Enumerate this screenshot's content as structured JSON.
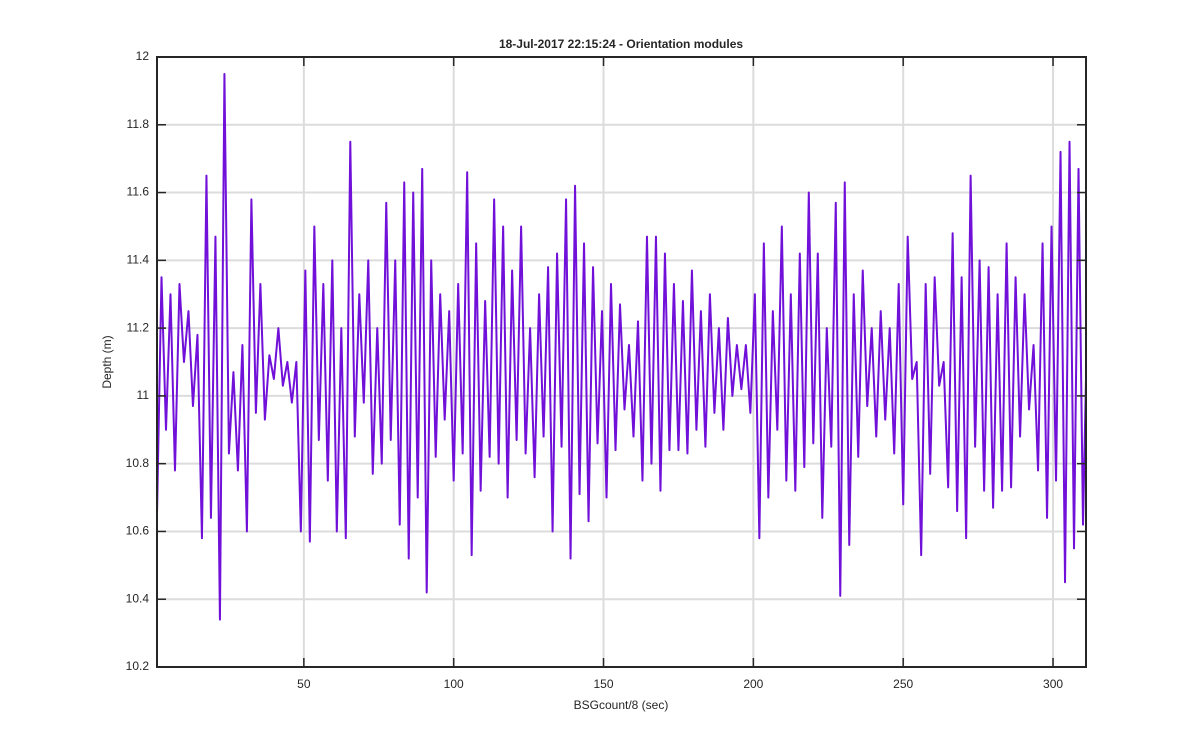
{
  "chart_data": {
    "type": "line",
    "title": "18-Jul-2017 22:15:24 - Orientation modules",
    "xlabel": "BSGcount/8 (sec)",
    "ylabel": "Depth (m)",
    "color": "#7010d8",
    "grid": true,
    "xlim": [
      1,
      311
    ],
    "ylim": [
      10.2,
      12
    ],
    "xticks": [
      50,
      100,
      150,
      200,
      250,
      300
    ],
    "yticks": [
      10.2,
      10.4,
      10.6,
      10.8,
      11,
      11.2,
      11.4,
      11.6,
      11.8,
      12
    ],
    "x": [
      1,
      2.5,
      4,
      5.5,
      7,
      8.5,
      10,
      11.5,
      13,
      14.5,
      16,
      17.5,
      19,
      20.5,
      22,
      23.5,
      25,
      26.5,
      28,
      29.5,
      31,
      32.5,
      34,
      35.5,
      37,
      38.5,
      40,
      41.5,
      43,
      44.5,
      46,
      47.5,
      49,
      50.5,
      52,
      53.5,
      55,
      56.5,
      58,
      59.5,
      61,
      62.5,
      64,
      65.5,
      67,
      68.5,
      70,
      71.5,
      73,
      74.5,
      76,
      77.5,
      79,
      80.5,
      82,
      83.5,
      85,
      86.5,
      88,
      89.5,
      91,
      92.5,
      94,
      95.5,
      97,
      98.5,
      100,
      101.5,
      103,
      104.5,
      106,
      107.5,
      109,
      110.5,
      112,
      113.5,
      115,
      116.5,
      118,
      119.5,
      121,
      122.5,
      124,
      125.5,
      127,
      128.5,
      130,
      131.5,
      133,
      134.5,
      136,
      137.5,
      139,
      140.5,
      142,
      143.5,
      145,
      146.5,
      148,
      149.5,
      151,
      152.5,
      154,
      155.5,
      157,
      158.5,
      160,
      161.5,
      163,
      164.5,
      166,
      167.5,
      169,
      170.5,
      172,
      173.5,
      175,
      176.5,
      178,
      179.5,
      181,
      182.5,
      184,
      185.5,
      187,
      188.5,
      190,
      191.5,
      193,
      194.5,
      196,
      197.5,
      199,
      200.5,
      202,
      203.5,
      205,
      206.5,
      208,
      209.5,
      211,
      212.5,
      214,
      215.5,
      217,
      218.5,
      220,
      221.5,
      223,
      224.5,
      226,
      227.5,
      229,
      230.5,
      232,
      233.5,
      235,
      236.5,
      238,
      239.5,
      241,
      242.5,
      244,
      245.5,
      247,
      248.5,
      250,
      251.5,
      253,
      254.5,
      256,
      257.5,
      259,
      260.5,
      262,
      263.5,
      265,
      266.5,
      268,
      269.5,
      271,
      272.5,
      274,
      275.5,
      277,
      278.5,
      280,
      281.5,
      283,
      284.5,
      286,
      287.5,
      289,
      290.5,
      292,
      293.5,
      295,
      296.5,
      298,
      299.5,
      301,
      302.5,
      304,
      305.5,
      307,
      308.5,
      310,
      311
    ],
    "values": [
      10.65,
      11.35,
      10.9,
      11.3,
      10.78,
      11.33,
      11.1,
      11.25,
      10.97,
      11.18,
      10.58,
      11.65,
      10.64,
      11.47,
      10.34,
      11.95,
      10.83,
      11.07,
      10.78,
      11.15,
      10.6,
      11.58,
      10.95,
      11.33,
      10.93,
      11.12,
      11.05,
      11.2,
      11.03,
      11.1,
      10.98,
      11.1,
      10.6,
      11.37,
      10.57,
      11.5,
      10.87,
      11.33,
      10.75,
      11.4,
      10.6,
      11.2,
      10.58,
      11.75,
      10.88,
      11.3,
      10.98,
      11.4,
      10.77,
      11.2,
      10.8,
      11.57,
      10.87,
      11.4,
      10.62,
      11.63,
      10.52,
      11.6,
      10.7,
      11.67,
      10.42,
      11.4,
      10.82,
      11.3,
      10.93,
      11.25,
      10.75,
      11.33,
      10.83,
      11.66,
      10.53,
      11.45,
      10.72,
      11.28,
      10.82,
      11.58,
      10.8,
      11.5,
      10.7,
      11.37,
      10.87,
      11.5,
      10.83,
      11.2,
      10.76,
      11.3,
      10.88,
      11.38,
      10.6,
      11.42,
      10.85,
      11.58,
      10.52,
      11.62,
      10.71,
      11.45,
      10.63,
      11.38,
      10.86,
      11.25,
      10.7,
      11.33,
      10.84,
      11.27,
      10.96,
      11.15,
      10.88,
      11.22,
      10.75,
      11.47,
      10.8,
      11.47,
      10.72,
      11.42,
      10.84,
      11.33,
      10.84,
      11.28,
      10.83,
      11.37,
      10.9,
      11.25,
      10.85,
      11.3,
      10.95,
      11.2,
      10.9,
      11.23,
      11.0,
      11.15,
      11.02,
      11.15,
      10.95,
      11.3,
      10.58,
      11.45,
      10.7,
      11.25,
      10.9,
      11.5,
      10.75,
      11.3,
      10.72,
      11.42,
      10.79,
      11.6,
      10.86,
      11.42,
      10.64,
      11.2,
      10.85,
      11.57,
      10.41,
      11.63,
      10.56,
      11.3,
      10.82,
      11.37,
      10.97,
      11.2,
      10.88,
      11.25,
      10.93,
      11.2,
      10.83,
      11.33,
      10.68,
      11.47,
      11.05,
      11.1,
      10.53,
      11.33,
      10.77,
      11.35,
      11.03,
      11.1,
      10.73,
      11.48,
      10.66,
      11.35,
      10.58,
      11.65,
      10.85,
      11.4,
      10.72,
      11.38,
      10.67,
      11.3,
      10.72,
      11.45,
      10.73,
      11.35,
      10.88,
      11.3,
      10.96,
      11.15,
      10.78,
      11.45,
      10.64,
      11.5,
      10.75,
      11.72,
      10.45,
      11.75,
      10.55,
      11.67,
      10.62,
      11.05
    ]
  }
}
